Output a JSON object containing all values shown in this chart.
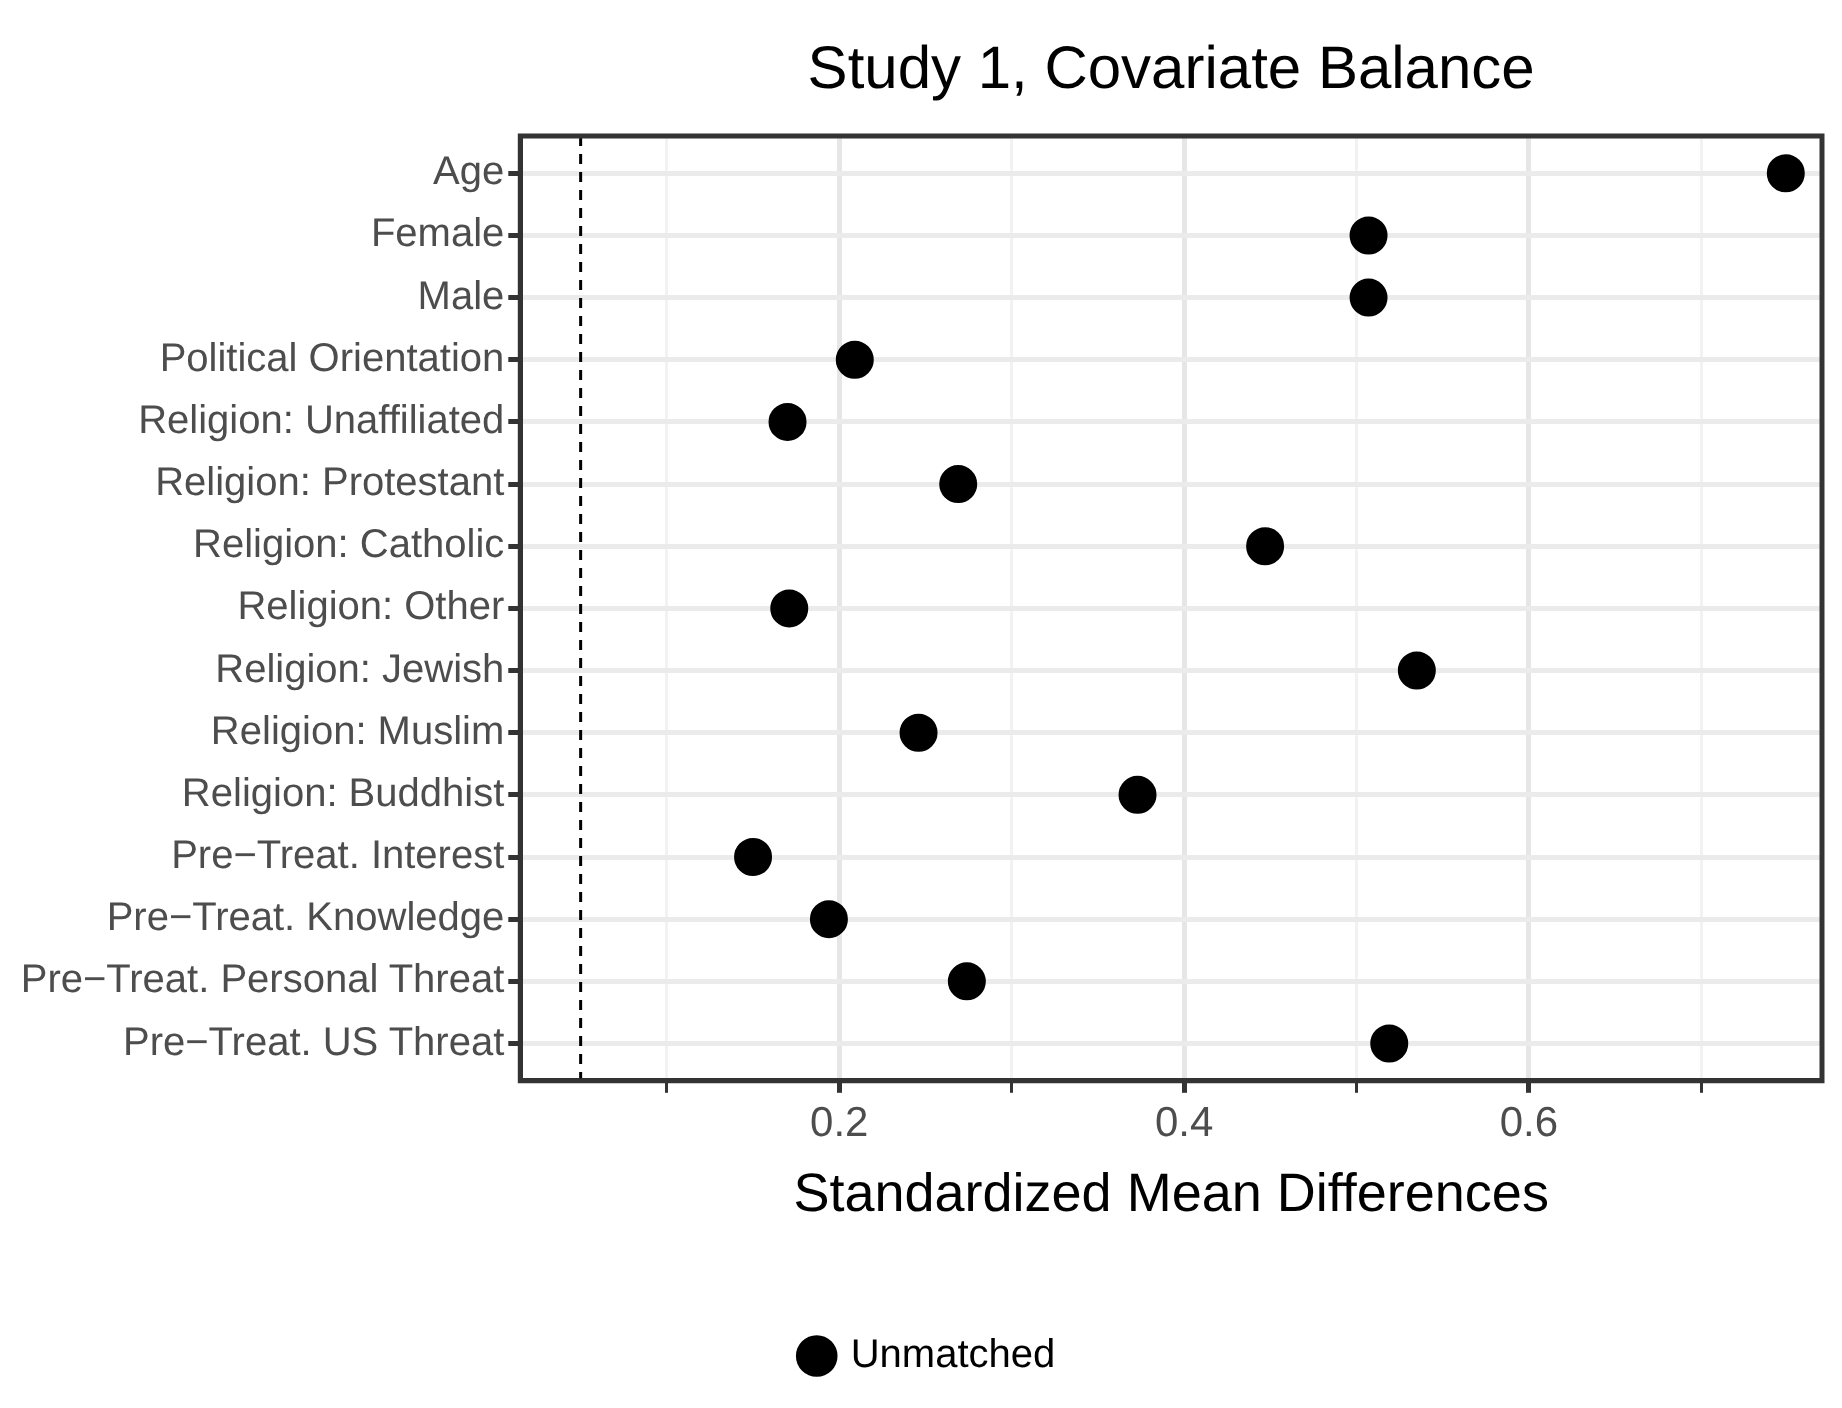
{
  "chart_data": {
    "type": "scatter",
    "title": "Study 1, Covariate Balance",
    "xlabel": "Standardized Mean Differences",
    "categories": [
      "Age",
      "Female",
      "Male",
      "Political Orientation",
      "Religion: Unaffiliated",
      "Religion: Protestant",
      "Religion: Catholic",
      "Religion: Other",
      "Religion: Jewish",
      "Religion: Muslim",
      "Religion: Buddhist",
      "Pre−Treat. Interest",
      "Pre−Treat. Knowledge",
      "Pre−Treat. Personal Threat",
      "Pre−Treat. US Threat"
    ],
    "series": [
      {
        "name": "Unmatched",
        "color": "#000000",
        "values": [
          0.749,
          0.507,
          0.507,
          0.209,
          0.17,
          0.269,
          0.447,
          0.171,
          0.535,
          0.246,
          0.373,
          0.15,
          0.194,
          0.274,
          0.519
        ]
      }
    ],
    "orientation": "horizontal",
    "xlim": [
      0.015,
      0.77
    ],
    "xticks": [
      {
        "value": 0.1,
        "label": null
      },
      0.2,
      {
        "value": 0.3,
        "label": null
      },
      0.4,
      {
        "value": 0.5,
        "label": null
      },
      0.6,
      {
        "value": 0.7,
        "label": null
      }
    ],
    "ref_lines": [
      {
        "axis": "x",
        "value": 0.05,
        "color": "#000000",
        "line_style": "dashed"
      }
    ],
    "grid": true,
    "legend": "bottom",
    "marker": "circle"
  }
}
